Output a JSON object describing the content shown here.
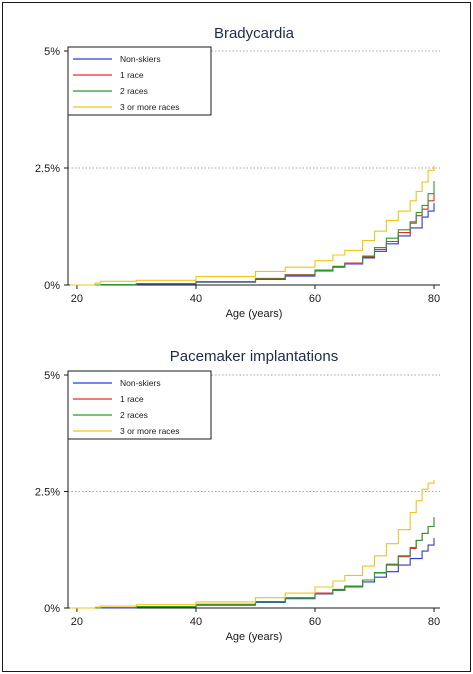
{
  "chart_data": [
    {
      "type": "line",
      "title": "Bradycardia",
      "xlabel": "Age (years)",
      "ylabel": "",
      "xlim": [
        18.5,
        81
      ],
      "ylim": [
        0,
        5
      ],
      "x_ticks": [
        "20",
        "40",
        "60",
        "80"
      ],
      "y_ticks": [
        "0%",
        "2.5%",
        "5%"
      ],
      "grid": "horizontal dotted",
      "legend_position": "top-left",
      "series": [
        {
          "name": "Non-skiers",
          "color": "#2b3bd1",
          "x": [
            23,
            30,
            40,
            50,
            55,
            60,
            63,
            65,
            68,
            70,
            72,
            74,
            76,
            78,
            79,
            80
          ],
          "y": [
            0.0,
            0.02,
            0.06,
            0.12,
            0.19,
            0.3,
            0.38,
            0.45,
            0.58,
            0.72,
            0.88,
            1.05,
            1.22,
            1.45,
            1.58,
            1.75
          ]
        },
        {
          "name": "1 race",
          "color": "#e32a2a",
          "x": [
            24,
            30,
            40,
            50,
            55,
            60,
            63,
            65,
            68,
            70,
            72,
            74,
            76,
            77,
            78,
            79,
            80
          ],
          "y": [
            0.01,
            0.03,
            0.07,
            0.14,
            0.22,
            0.32,
            0.4,
            0.47,
            0.6,
            0.76,
            0.93,
            1.12,
            1.32,
            1.48,
            1.62,
            1.8,
            1.95
          ]
        },
        {
          "name": "2 races",
          "color": "#2e9a2e",
          "x": [
            24,
            30,
            40,
            50,
            55,
            60,
            63,
            65,
            68,
            70,
            72,
            74,
            76,
            77,
            78,
            79,
            80
          ],
          "y": [
            0.01,
            0.03,
            0.07,
            0.13,
            0.21,
            0.31,
            0.39,
            0.46,
            0.62,
            0.8,
            1.0,
            1.18,
            1.35,
            1.55,
            1.7,
            1.95,
            2.22
          ]
        },
        {
          "name": "3 or more races",
          "color": "#f0c419",
          "x": [
            23,
            24,
            30,
            40,
            50,
            55,
            60,
            63,
            65,
            68,
            70,
            72,
            74,
            76,
            77,
            78,
            79,
            80
          ],
          "y": [
            0.04,
            0.08,
            0.1,
            0.18,
            0.29,
            0.38,
            0.52,
            0.64,
            0.74,
            0.95,
            1.15,
            1.38,
            1.58,
            1.8,
            2.0,
            2.2,
            2.45,
            2.55
          ]
        }
      ]
    },
    {
      "type": "line",
      "title": "Pacemaker implantations",
      "xlabel": "Age (years)",
      "ylabel": "",
      "xlim": [
        18.5,
        81
      ],
      "ylim": [
        0,
        5
      ],
      "x_ticks": [
        "20",
        "40",
        "60",
        "80"
      ],
      "y_ticks": [
        "0%",
        "2.5%",
        "5%"
      ],
      "grid": "horizontal dotted",
      "legend_position": "top-left",
      "series": [
        {
          "name": "Non-skiers",
          "color": "#2b3bd1",
          "x": [
            23,
            30,
            40,
            50,
            55,
            60,
            63,
            65,
            68,
            70,
            72,
            74,
            76,
            78,
            79,
            80
          ],
          "y": [
            0.0,
            0.02,
            0.06,
            0.12,
            0.2,
            0.3,
            0.38,
            0.45,
            0.56,
            0.66,
            0.78,
            0.92,
            1.06,
            1.22,
            1.35,
            1.5
          ]
        },
        {
          "name": "1 race",
          "color": "#e32a2a",
          "x": [
            24,
            30,
            40,
            50,
            55,
            60,
            63,
            65,
            68,
            70,
            72,
            74,
            76,
            77,
            78,
            79,
            80
          ],
          "y": [
            0.01,
            0.03,
            0.08,
            0.14,
            0.22,
            0.32,
            0.4,
            0.47,
            0.6,
            0.75,
            0.92,
            1.1,
            1.28,
            1.45,
            1.6,
            1.75,
            1.92
          ]
        },
        {
          "name": "2 races",
          "color": "#2e9a2e",
          "x": [
            24,
            30,
            40,
            50,
            55,
            60,
            63,
            65,
            68,
            70,
            72,
            74,
            76,
            77,
            78,
            79,
            80
          ],
          "y": [
            0.01,
            0.03,
            0.07,
            0.13,
            0.21,
            0.31,
            0.38,
            0.46,
            0.6,
            0.76,
            0.94,
            1.12,
            1.3,
            1.45,
            1.6,
            1.75,
            1.95
          ]
        },
        {
          "name": "3 or more races",
          "color": "#f0c419",
          "x": [
            23,
            24,
            30,
            40,
            50,
            55,
            60,
            63,
            65,
            68,
            70,
            72,
            74,
            76,
            77,
            78,
            79,
            80
          ],
          "y": [
            0.02,
            0.04,
            0.07,
            0.13,
            0.22,
            0.32,
            0.45,
            0.58,
            0.7,
            0.9,
            1.12,
            1.38,
            1.68,
            2.05,
            2.3,
            2.55,
            2.68,
            2.75
          ]
        }
      ]
    }
  ]
}
